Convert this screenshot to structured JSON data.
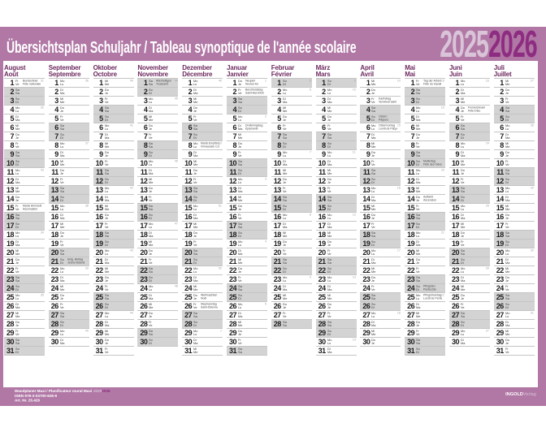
{
  "poster": {
    "title": "Übersichtsplan Schuljahr / Tableau synoptique de l'année scolaire",
    "year_left": "2025",
    "year_right": "2026"
  },
  "footer": {
    "product_line": "Wandplaner Maxi / Planificateur mural Maxi",
    "product_year_left": "2025",
    "product_year_right": "2026",
    "isbn": "ISBN 978-3-03700-626-9",
    "art_no": "Art. Nr. 25.426",
    "publisher_name": "INGOLD",
    "publisher_suffix": "Verlag"
  },
  "colors": {
    "frame_purple": "#b178a6",
    "accent_dark": "#8d2c80",
    "accent_light": "#d9c4d8",
    "month_name": "#6e2a60",
    "weekend_gray": "#d3d3d3",
    "grid_line": "#c4c4c4"
  },
  "weekdays": [
    [
      "Mo",
      "Lu"
    ],
    [
      "Di",
      "Ma"
    ],
    [
      "Mi",
      "Me"
    ],
    [
      "Do",
      "Je"
    ],
    [
      "Fr",
      "Ve"
    ],
    [
      "Sa",
      "Sa"
    ],
    [
      "So",
      "Di"
    ]
  ],
  "months": [
    {
      "de": "August",
      "fr": "Août",
      "days": 31,
      "start": 4,
      "holidays": {
        "1": [
          "Bundesfeier",
          "Fête nationale"
        ],
        "15": [
          "Mariä Himmelfahrt",
          "Assomption"
        ]
      },
      "weeks": {
        "1": 31,
        "4": 32,
        "11": 33,
        "18": 34,
        "25": 35
      }
    },
    {
      "de": "September",
      "fr": "Septembre",
      "days": 30,
      "start": 0,
      "holidays": {
        "21": [
          "Eidg. Bettag",
          "Jeûne fédéral"
        ]
      },
      "weeks": {
        "1": 36,
        "8": 37,
        "15": 38,
        "22": 39,
        "29": 40
      }
    },
    {
      "de": "Oktober",
      "fr": "Octobre",
      "days": 31,
      "start": 2,
      "holidays": {},
      "weeks": {
        "1": 40,
        "6": 41,
        "13": 42,
        "20": 43,
        "27": 44
      }
    },
    {
      "de": "November",
      "fr": "Novembre",
      "days": 30,
      "start": 5,
      "holidays": {
        "1": [
          "Allerheiligen",
          "Toussaint"
        ]
      },
      "weeks": {
        "1": 44,
        "3": 45,
        "10": 46,
        "17": 47,
        "24": 48
      }
    },
    {
      "de": "Dezember",
      "fr": "Décembre",
      "days": 31,
      "start": 0,
      "holidays": {
        "8": [
          "Mariä Empfängnis",
          "Immaculée Conception"
        ],
        "25": [
          "Weihnachten",
          "Noël"
        ],
        "26": [
          "Stephanstag",
          "Saint-Étienne"
        ]
      },
      "weeks": {
        "1": 49,
        "8": 50,
        "15": 51,
        "22": 52,
        "29": 1
      }
    },
    {
      "de": "Januar",
      "fr": "Janvier",
      "days": 31,
      "start": 3,
      "holidays": {
        "1": [
          "Neujahr",
          "Nouvel An"
        ],
        "2": [
          "Berchtoldstag",
          "Saint-Berchtold"
        ],
        "6": [
          "Dreikönigstag",
          "Épiphanie"
        ]
      },
      "weeks": {
        "1": 1,
        "5": 2,
        "12": 3,
        "19": 4,
        "26": 5
      }
    },
    {
      "de": "Februar",
      "fr": "Février",
      "days": 28,
      "start": 6,
      "holidays": {},
      "weeks": {
        "1": 5,
        "2": 6,
        "9": 7,
        "16": 8,
        "23": 9
      }
    },
    {
      "de": "März",
      "fr": "Mars",
      "days": 31,
      "start": 6,
      "holidays": {},
      "weeks": {
        "1": 9,
        "2": 10,
        "9": 11,
        "16": 12,
        "23": 13,
        "30": 14
      }
    },
    {
      "de": "April",
      "fr": "Avril",
      "days": 30,
      "start": 2,
      "holidays": {
        "3": [
          "Karfreitag",
          "Vendredi saint"
        ],
        "5": [
          "Ostern",
          "Pâques"
        ],
        "6": [
          "Ostermontag",
          "Lundi de Pâques"
        ]
      },
      "weeks": {
        "1": 14,
        "6": 15,
        "13": 16,
        "20": 17,
        "27": 18
      }
    },
    {
      "de": "Mai",
      "fr": "Mai",
      "days": 31,
      "start": 4,
      "holidays": {
        "1": [
          "Tag der Arbeit",
          "Fête du travail"
        ],
        "10": [
          "Muttertag",
          "Fête des mères"
        ],
        "14": [
          "Auffahrt",
          "Ascension"
        ],
        "24": [
          "Pfingsten",
          "Pentecôte"
        ],
        "25": [
          "Pfingstmontag",
          "Lundi de Pentecôte"
        ]
      },
      "weeks": {
        "1": 18,
        "4": 19,
        "11": 20,
        "18": 21,
        "25": 22
      }
    },
    {
      "de": "Juni",
      "fr": "Juin",
      "days": 30,
      "start": 0,
      "holidays": {
        "4": [
          "Fronleichnam",
          "Fête-Dieu"
        ]
      },
      "weeks": {
        "1": 23,
        "8": 24,
        "15": 25,
        "22": 26,
        "29": 27
      }
    },
    {
      "de": "Juli",
      "fr": "Juillet",
      "days": 31,
      "start": 2,
      "holidays": {},
      "weeks": {
        "1": 27,
        "6": 28,
        "13": 29,
        "20": 30,
        "27": 31
      }
    }
  ]
}
